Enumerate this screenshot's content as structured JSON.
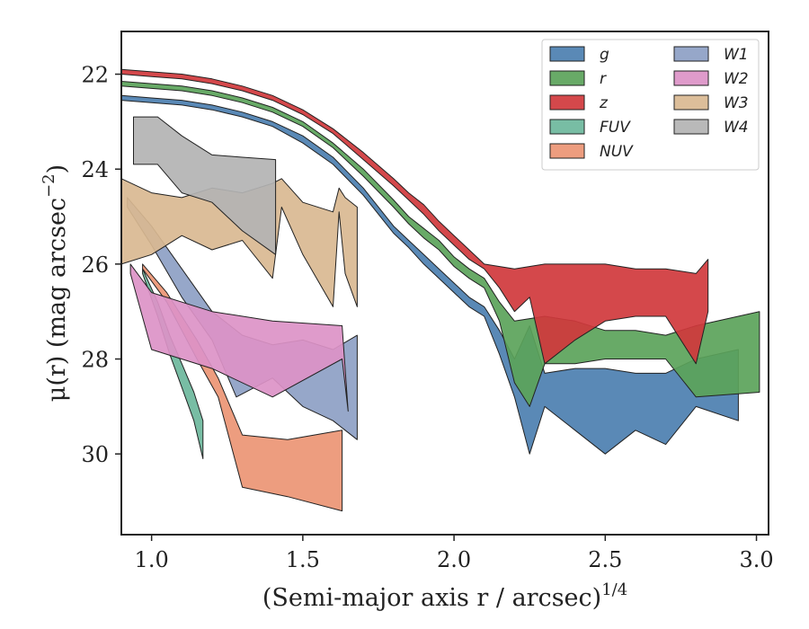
{
  "chart_data": {
    "type": "area",
    "title": "",
    "xlabel": "(Semi-major axis r / arcsec)",
    "xlabel_sup": "1/4",
    "ylabel": "μ(r) (mag arcsec",
    "ylabel_sup": "−2",
    "ylabel_close": ")",
    "xlim": [
      0.9,
      3.04
    ],
    "ylim": [
      31.7,
      21.1
    ],
    "y_inverted": true,
    "xticks": [
      1.0,
      1.5,
      2.0,
      2.5,
      3.0
    ],
    "xtick_labels": [
      "1.0",
      "1.5",
      "2.0",
      "2.5",
      "3.0"
    ],
    "yticks": [
      22,
      24,
      26,
      28,
      30
    ],
    "ytick_labels": [
      "22",
      "24",
      "26",
      "28",
      "30"
    ],
    "grid": false,
    "legend": {
      "placement": "top-right",
      "columns": 2
    },
    "series": [
      {
        "name": "g",
        "color": "#4c7fb0",
        "upper": [
          [
            0.9,
            22.45
          ],
          [
            1.0,
            22.5
          ],
          [
            1.1,
            22.55
          ],
          [
            1.2,
            22.65
          ],
          [
            1.3,
            22.8
          ],
          [
            1.4,
            23.0
          ],
          [
            1.5,
            23.3
          ],
          [
            1.6,
            23.75
          ],
          [
            1.7,
            24.4
          ],
          [
            1.8,
            25.2
          ],
          [
            1.85,
            25.5
          ],
          [
            1.9,
            25.8
          ],
          [
            1.95,
            26.1
          ],
          [
            2.0,
            26.4
          ],
          [
            2.05,
            26.7
          ],
          [
            2.1,
            26.9
          ],
          [
            2.15,
            27.4
          ],
          [
            2.2,
            28.0
          ],
          [
            2.25,
            27.3
          ],
          [
            2.3,
            28.3
          ],
          [
            2.4,
            28.2
          ],
          [
            2.5,
            28.2
          ],
          [
            2.6,
            28.3
          ],
          [
            2.7,
            28.3
          ],
          [
            2.8,
            28.0
          ],
          [
            2.94,
            27.8
          ]
        ],
        "lower": [
          [
            0.9,
            22.55
          ],
          [
            1.0,
            22.6
          ],
          [
            1.1,
            22.65
          ],
          [
            1.2,
            22.75
          ],
          [
            1.3,
            22.9
          ],
          [
            1.4,
            23.1
          ],
          [
            1.5,
            23.45
          ],
          [
            1.6,
            23.9
          ],
          [
            1.7,
            24.55
          ],
          [
            1.8,
            25.35
          ],
          [
            1.85,
            25.65
          ],
          [
            1.9,
            26.0
          ],
          [
            1.95,
            26.3
          ],
          [
            2.0,
            26.6
          ],
          [
            2.05,
            26.9
          ],
          [
            2.1,
            27.1
          ],
          [
            2.15,
            27.9
          ],
          [
            2.2,
            28.8
          ],
          [
            2.25,
            30.0
          ],
          [
            2.3,
            29.0
          ],
          [
            2.4,
            29.5
          ],
          [
            2.5,
            30.0
          ],
          [
            2.6,
            29.5
          ],
          [
            2.7,
            29.8
          ],
          [
            2.8,
            29.0
          ],
          [
            2.94,
            29.3
          ]
        ]
      },
      {
        "name": "r",
        "color": "#5ba35a",
        "upper": [
          [
            0.9,
            22.15
          ],
          [
            1.0,
            22.2
          ],
          [
            1.1,
            22.25
          ],
          [
            1.2,
            22.35
          ],
          [
            1.3,
            22.5
          ],
          [
            1.4,
            22.7
          ],
          [
            1.5,
            23.0
          ],
          [
            1.6,
            23.45
          ],
          [
            1.7,
            24.0
          ],
          [
            1.8,
            24.65
          ],
          [
            1.85,
            25.0
          ],
          [
            1.9,
            25.25
          ],
          [
            1.95,
            25.5
          ],
          [
            2.0,
            25.85
          ],
          [
            2.05,
            26.1
          ],
          [
            2.1,
            26.3
          ],
          [
            2.15,
            26.8
          ],
          [
            2.2,
            27.2
          ],
          [
            2.3,
            27.1
          ],
          [
            2.4,
            27.2
          ],
          [
            2.5,
            27.4
          ],
          [
            2.6,
            27.4
          ],
          [
            2.7,
            27.5
          ],
          [
            2.8,
            27.3
          ],
          [
            3.01,
            27.0
          ]
        ],
        "lower": [
          [
            0.9,
            22.25
          ],
          [
            1.0,
            22.3
          ],
          [
            1.1,
            22.35
          ],
          [
            1.2,
            22.45
          ],
          [
            1.3,
            22.6
          ],
          [
            1.4,
            22.8
          ],
          [
            1.5,
            23.1
          ],
          [
            1.6,
            23.55
          ],
          [
            1.7,
            24.15
          ],
          [
            1.8,
            24.8
          ],
          [
            1.85,
            25.15
          ],
          [
            1.9,
            25.45
          ],
          [
            1.95,
            25.7
          ],
          [
            2.0,
            26.05
          ],
          [
            2.05,
            26.3
          ],
          [
            2.1,
            26.5
          ],
          [
            2.15,
            27.2
          ],
          [
            2.2,
            28.5
          ],
          [
            2.25,
            29.0
          ],
          [
            2.3,
            28.1
          ],
          [
            2.4,
            28.1
          ],
          [
            2.5,
            28.0
          ],
          [
            2.6,
            28.0
          ],
          [
            2.7,
            28.0
          ],
          [
            2.8,
            28.8
          ],
          [
            3.01,
            28.7
          ]
        ]
      },
      {
        "name": "z",
        "color": "#d0383c",
        "upper": [
          [
            0.9,
            21.9
          ],
          [
            1.0,
            21.95
          ],
          [
            1.1,
            22.0
          ],
          [
            1.2,
            22.1
          ],
          [
            1.3,
            22.25
          ],
          [
            1.4,
            22.45
          ],
          [
            1.5,
            22.75
          ],
          [
            1.6,
            23.15
          ],
          [
            1.7,
            23.65
          ],
          [
            1.8,
            24.2
          ],
          [
            1.85,
            24.5
          ],
          [
            1.9,
            24.75
          ],
          [
            1.95,
            25.1
          ],
          [
            2.0,
            25.4
          ],
          [
            2.05,
            25.7
          ],
          [
            2.1,
            26.0
          ],
          [
            2.2,
            26.1
          ],
          [
            2.3,
            26.0
          ],
          [
            2.4,
            26.0
          ],
          [
            2.5,
            26.0
          ],
          [
            2.6,
            26.1
          ],
          [
            2.7,
            26.1
          ],
          [
            2.8,
            26.2
          ],
          [
            2.84,
            25.9
          ]
        ],
        "lower": [
          [
            0.9,
            22.0
          ],
          [
            1.0,
            22.05
          ],
          [
            1.1,
            22.1
          ],
          [
            1.2,
            22.2
          ],
          [
            1.3,
            22.35
          ],
          [
            1.4,
            22.55
          ],
          [
            1.5,
            22.85
          ],
          [
            1.6,
            23.25
          ],
          [
            1.7,
            23.8
          ],
          [
            1.8,
            24.35
          ],
          [
            1.85,
            24.65
          ],
          [
            1.9,
            24.95
          ],
          [
            1.95,
            25.3
          ],
          [
            2.0,
            25.6
          ],
          [
            2.05,
            25.9
          ],
          [
            2.1,
            26.1
          ],
          [
            2.15,
            26.5
          ],
          [
            2.2,
            27.0
          ],
          [
            2.25,
            26.7
          ],
          [
            2.3,
            28.1
          ],
          [
            2.4,
            27.6
          ],
          [
            2.5,
            27.2
          ],
          [
            2.6,
            27.1
          ],
          [
            2.7,
            27.1
          ],
          [
            2.8,
            28.1
          ],
          [
            2.84,
            27.0
          ]
        ]
      },
      {
        "name": "FUV",
        "color": "#6db79c",
        "upper": [
          [
            0.97,
            26.1
          ],
          [
            1.02,
            26.8
          ],
          [
            1.06,
            27.5
          ],
          [
            1.1,
            28.1
          ],
          [
            1.14,
            28.7
          ],
          [
            1.17,
            29.3
          ]
        ],
        "lower": [
          [
            0.97,
            26.2
          ],
          [
            1.02,
            27.1
          ],
          [
            1.06,
            27.9
          ],
          [
            1.1,
            28.6
          ],
          [
            1.14,
            29.3
          ],
          [
            1.17,
            30.1
          ]
        ]
      },
      {
        "name": "NUV",
        "color": "#eb9574",
        "upper": [
          [
            0.97,
            26.0
          ],
          [
            1.05,
            26.6
          ],
          [
            1.15,
            27.6
          ],
          [
            1.22,
            28.4
          ],
          [
            1.3,
            29.6
          ],
          [
            1.45,
            29.7
          ],
          [
            1.63,
            29.5
          ]
        ],
        "lower": [
          [
            0.97,
            26.1
          ],
          [
            1.05,
            26.8
          ],
          [
            1.15,
            28.0
          ],
          [
            1.22,
            28.8
          ],
          [
            1.3,
            30.7
          ],
          [
            1.45,
            30.9
          ],
          [
            1.63,
            31.2
          ]
        ]
      },
      {
        "name": "W1",
        "color": "#8d9fc4",
        "upper": [
          [
            0.92,
            24.6
          ],
          [
            1.0,
            25.2
          ],
          [
            1.1,
            26.1
          ],
          [
            1.2,
            27.0
          ],
          [
            1.3,
            27.5
          ],
          [
            1.4,
            27.7
          ],
          [
            1.5,
            27.6
          ],
          [
            1.6,
            27.8
          ],
          [
            1.68,
            27.5
          ]
        ],
        "lower": [
          [
            0.92,
            24.8
          ],
          [
            1.0,
            25.6
          ],
          [
            1.1,
            26.7
          ],
          [
            1.2,
            27.6
          ],
          [
            1.28,
            28.8
          ],
          [
            1.4,
            28.4
          ],
          [
            1.5,
            29.0
          ],
          [
            1.6,
            29.3
          ],
          [
            1.68,
            29.7
          ]
        ]
      },
      {
        "name": "W2",
        "color": "#dc92c7",
        "upper": [
          [
            0.93,
            26.0
          ],
          [
            1.0,
            26.6
          ],
          [
            1.2,
            27.0
          ],
          [
            1.4,
            27.2
          ],
          [
            1.63,
            27.3
          ]
        ],
        "lower": [
          [
            0.93,
            26.2
          ],
          [
            1.0,
            27.8
          ],
          [
            1.2,
            28.2
          ],
          [
            1.4,
            28.8
          ],
          [
            1.63,
            28.0
          ],
          [
            1.65,
            29.1
          ]
        ]
      },
      {
        "name": "W3",
        "color": "#d9b991",
        "upper": [
          [
            0.9,
            24.2
          ],
          [
            1.0,
            24.5
          ],
          [
            1.1,
            24.6
          ],
          [
            1.2,
            24.4
          ],
          [
            1.3,
            24.5
          ],
          [
            1.4,
            24.3
          ],
          [
            1.43,
            24.2
          ],
          [
            1.5,
            24.7
          ],
          [
            1.6,
            24.9
          ],
          [
            1.62,
            24.4
          ],
          [
            1.64,
            24.6
          ],
          [
            1.68,
            24.8
          ]
        ],
        "lower": [
          [
            0.9,
            26.0
          ],
          [
            1.0,
            25.8
          ],
          [
            1.1,
            25.4
          ],
          [
            1.2,
            25.7
          ],
          [
            1.3,
            25.5
          ],
          [
            1.4,
            26.3
          ],
          [
            1.43,
            24.8
          ],
          [
            1.5,
            25.8
          ],
          [
            1.6,
            26.9
          ],
          [
            1.62,
            24.9
          ],
          [
            1.64,
            26.2
          ],
          [
            1.68,
            26.9
          ]
        ]
      },
      {
        "name": "W4",
        "color": "#b3b3b3",
        "upper": [
          [
            0.94,
            22.9
          ],
          [
            1.02,
            22.9
          ],
          [
            1.1,
            23.3
          ],
          [
            1.2,
            23.7
          ],
          [
            1.3,
            23.75
          ],
          [
            1.41,
            23.8
          ]
        ],
        "lower": [
          [
            0.94,
            23.9
          ],
          [
            1.02,
            23.9
          ],
          [
            1.1,
            24.5
          ],
          [
            1.2,
            24.7
          ],
          [
            1.3,
            25.3
          ],
          [
            1.41,
            25.8
          ]
        ]
      }
    ]
  }
}
